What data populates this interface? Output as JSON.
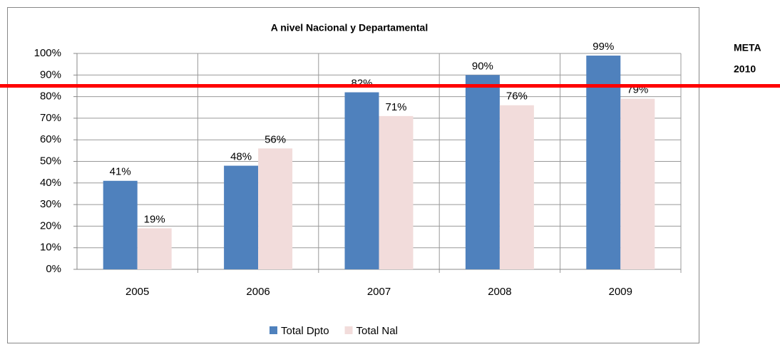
{
  "chart_data": {
    "type": "bar",
    "title": "A nivel Nacional y Departamental",
    "categories": [
      "2005",
      "2006",
      "2007",
      "2008",
      "2009"
    ],
    "series": [
      {
        "name": "Total Dpto",
        "color": "#4f81bd",
        "values": [
          41,
          48,
          82,
          90,
          99
        ],
        "value_labels": [
          "41%",
          "48%",
          "82%",
          "90%",
          "99%"
        ]
      },
      {
        "name": "Total Nal",
        "color": "#f2dcdb",
        "values": [
          19,
          56,
          71,
          76,
          79
        ],
        "value_labels": [
          "19%",
          "56%",
          "71%",
          "76%",
          "79%"
        ]
      }
    ],
    "ylim": [
      0,
      100
    ],
    "yticks": [
      {
        "value": 0,
        "label": "0%"
      },
      {
        "value": 10,
        "label": "10%"
      },
      {
        "value": 20,
        "label": "20%"
      },
      {
        "value": 30,
        "label": "30%"
      },
      {
        "value": 40,
        "label": "40%"
      },
      {
        "value": 50,
        "label": "50%"
      },
      {
        "value": 60,
        "label": "60%"
      },
      {
        "value": 70,
        "label": "70%"
      },
      {
        "value": 80,
        "label": "80%"
      },
      {
        "value": 90,
        "label": "90%"
      },
      {
        "value": 100,
        "label": "100%"
      }
    ],
    "grid": true,
    "legend": "bottom",
    "reference_line": {
      "value": 85,
      "color": "#ff0000",
      "label_lines": [
        "META",
        "2010"
      ]
    }
  }
}
